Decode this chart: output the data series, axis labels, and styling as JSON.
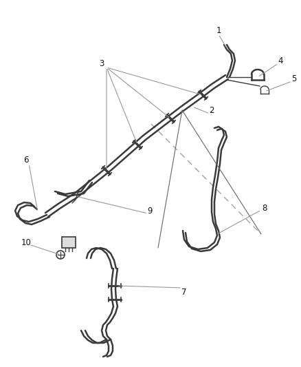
{
  "bg_color": "#ffffff",
  "line_color": "#3a3a3a",
  "label_color": "#111111",
  "leader_color": "#999999",
  "fig_width": 4.38,
  "fig_height": 5.33,
  "dpi": 100,
  "label_fontsize": 8.5
}
